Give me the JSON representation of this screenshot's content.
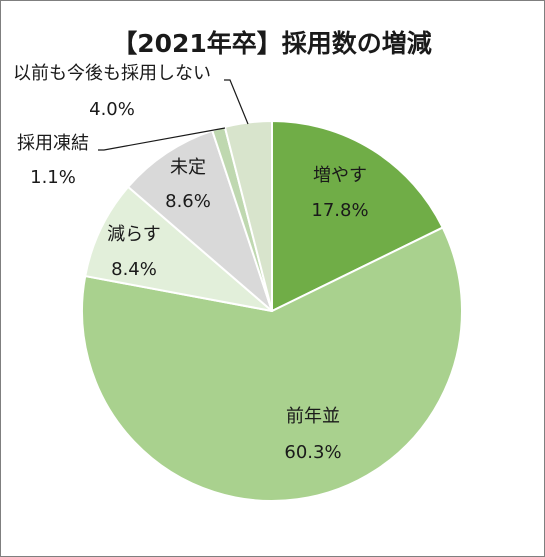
{
  "chart_data": {
    "type": "pie",
    "title": "【2021年卒】採用数の増減",
    "start_angle_deg": 0,
    "direction": "clockwise",
    "legend": "none",
    "slices": [
      {
        "label": "増やす",
        "value": 17.8,
        "value_text": "17.8%",
        "color": "#70ad47"
      },
      {
        "label": "前年並",
        "value": 60.3,
        "value_text": "60.3%",
        "color": "#a9d18e"
      },
      {
        "label": "減らす",
        "value": 8.4,
        "value_text": "8.4%",
        "color": "#e2efda"
      },
      {
        "label": "未定",
        "value": 8.6,
        "value_text": "8.6%",
        "color": "#d9d9d9"
      },
      {
        "label": "採用凍結",
        "value": 1.1,
        "value_text": "1.1%",
        "color": "#bfd8b0"
      },
      {
        "label": "以前も今後も採用しない",
        "value": 4.0,
        "value_text": "4.0%",
        "color": "#d8e4cc"
      }
    ]
  }
}
